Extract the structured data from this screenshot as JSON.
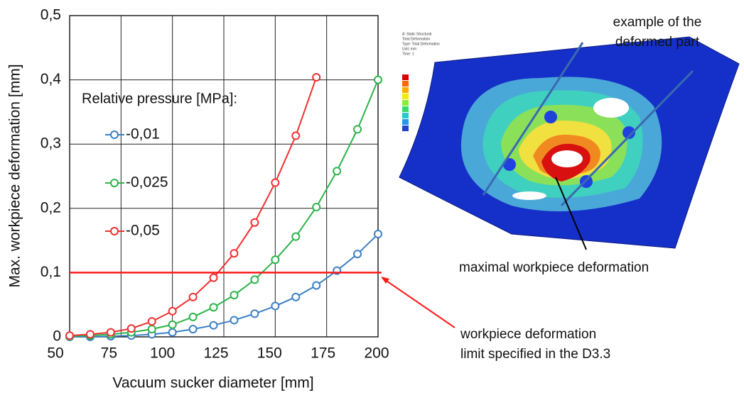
{
  "chart_data": {
    "type": "line",
    "x_label": "Vacuum sucker diameter [mm]",
    "y_label": "Max. workpiece deformation [mm]",
    "legend_title": "Relative pressure [MPa]:",
    "x": [
      50,
      60,
      70,
      80,
      90,
      100,
      110,
      120,
      130,
      140,
      150,
      160,
      170,
      180,
      190,
      200
    ],
    "series": [
      {
        "name": "-0,01",
        "color": "#3b7fc4",
        "values": [
          0,
          0,
          0.001,
          0.002,
          0.004,
          0.007,
          0.012,
          0.018,
          0.026,
          0.036,
          0.048,
          0.062,
          0.08,
          0.103,
          0.129,
          0.16
        ]
      },
      {
        "name": "-0,025",
        "color": "#2db34a",
        "values": [
          0.001,
          0.002,
          0.004,
          0.007,
          0.012,
          0.019,
          0.031,
          0.046,
          0.065,
          0.089,
          0.12,
          0.156,
          0.202,
          0.258,
          0.323,
          0.4
        ]
      },
      {
        "name": "-0,05",
        "color": "#f03030",
        "values": [
          0.002,
          0.004,
          0.007,
          0.013,
          0.024,
          0.04,
          0.062,
          0.092,
          0.13,
          0.178,
          0.24,
          0.313,
          0.404,
          null,
          null,
          null
        ]
      }
    ],
    "xlim": [
      50,
      200
    ],
    "ylim": [
      0,
      0.5
    ],
    "xticks": [
      50,
      75,
      100,
      125,
      150,
      175,
      200
    ],
    "yticks": [
      0,
      {
        "value": 0.1,
        "label": "0,1"
      },
      {
        "value": 0.2,
        "label": "0,2"
      },
      {
        "value": 0.3,
        "label": "0,3"
      },
      {
        "value": 0.4,
        "label": "0,4"
      },
      {
        "value": 0.5,
        "label": "0,5"
      }
    ],
    "grid": true,
    "limit_line": {
      "value": 0.1,
      "color": "#ff1a1a",
      "label_lines": [
        "workpiece deformation",
        "limit specified in the D3.3"
      ]
    },
    "image_annotations": {
      "part_label_lines": [
        "example of the",
        "deformed part"
      ],
      "max_label": "maximal workpiece deformation",
      "fea_header": [
        "A: Static Structural",
        "Total Deformation",
        "Type: Total Deformation",
        "Unit: mm",
        "Time: 1"
      ]
    }
  }
}
